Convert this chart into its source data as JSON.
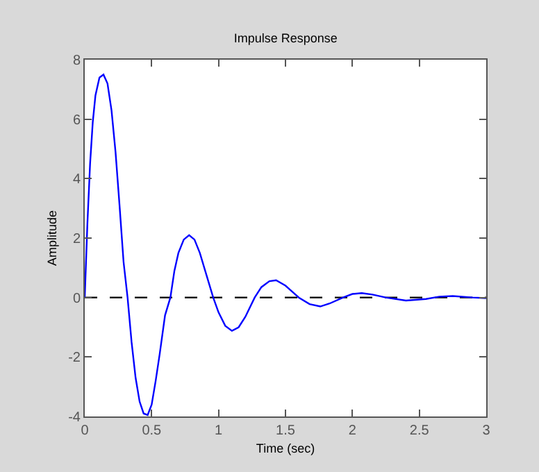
{
  "chart_data": {
    "type": "line",
    "title": "Impulse Response",
    "xlabel": "Time (sec)",
    "ylabel": "Amplitude",
    "x": [
      0,
      0.02,
      0.04,
      0.06,
      0.08,
      0.11,
      0.14,
      0.17,
      0.2,
      0.23,
      0.26,
      0.29,
      0.32,
      0.35,
      0.38,
      0.41,
      0.44,
      0.47,
      0.5,
      0.53,
      0.56,
      0.6,
      0.64,
      0.67,
      0.7,
      0.74,
      0.78,
      0.82,
      0.86,
      0.9,
      0.96,
      1.0,
      1.05,
      1.1,
      1.15,
      1.2,
      1.27,
      1.32,
      1.38,
      1.43,
      1.5,
      1.55,
      1.6,
      1.68,
      1.76,
      1.83,
      1.93,
      2.0,
      2.07,
      2.15,
      2.25,
      2.4,
      2.55,
      2.65,
      2.75,
      2.9,
      3.0
    ],
    "series": [
      {
        "color": "#0000ff",
        "values": [
          0,
          2.5,
          4.5,
          5.9,
          6.8,
          7.4,
          7.5,
          7.2,
          6.3,
          4.9,
          3.1,
          1.2,
          0,
          -1.5,
          -2.7,
          -3.5,
          -3.9,
          -3.95,
          -3.6,
          -2.8,
          -1.9,
          -0.6,
          0,
          0.9,
          1.5,
          1.95,
          2.1,
          1.95,
          1.5,
          0.9,
          0,
          -0.5,
          -0.95,
          -1.12,
          -1.0,
          -0.65,
          0,
          0.35,
          0.55,
          0.58,
          0.4,
          0.2,
          0,
          -0.22,
          -0.3,
          -0.2,
          0,
          0.12,
          0.15,
          0.1,
          0,
          -0.1,
          -0.05,
          0.03,
          0.05,
          0,
          -0.02
        ]
      }
    ],
    "xlim": [
      0,
      3
    ],
    "xticks": [
      0,
      0.5,
      1,
      1.5,
      2,
      2.5,
      3
    ],
    "ylim": [
      -4,
      8
    ],
    "yticks": [
      -4,
      -2,
      0,
      2,
      4,
      6,
      8
    ],
    "grid": false,
    "legend": false,
    "marker": "none",
    "line_style": "solid",
    "ref_lines": [
      {
        "axis": "y",
        "value": 0,
        "color": "#000000",
        "line_style": "dashed"
      }
    ]
  }
}
